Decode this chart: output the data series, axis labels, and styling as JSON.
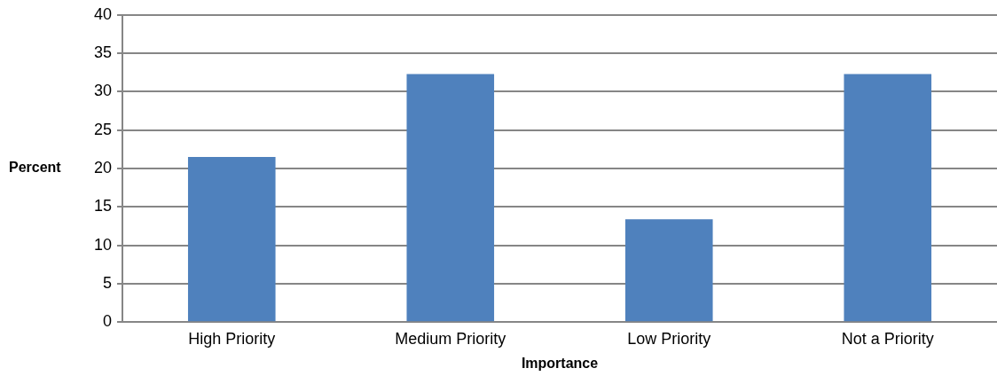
{
  "chart_data": {
    "type": "bar",
    "xlabel": "Importance",
    "ylabel": "Percent",
    "categories": [
      "High Priority",
      "Medium Priority",
      "Low Priority",
      "Not a Priority"
    ],
    "values": [
      21.5,
      32.3,
      13.4,
      32.3
    ],
    "color": "#4f81bd",
    "ylim": [
      0,
      40
    ],
    "yticks": [
      0,
      5,
      10,
      15,
      20,
      25,
      30,
      35,
      40
    ],
    "grid": "y",
    "legend": false
  }
}
